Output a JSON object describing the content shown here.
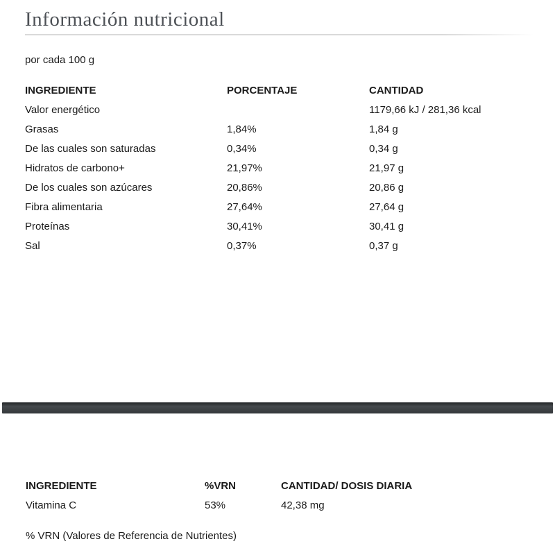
{
  "page": {
    "title": "Información nutricional",
    "serving_note": "por cada 100 g",
    "footnote": "% VRN (Valores de Referencia de Nutrientes)"
  },
  "nutrition_table": {
    "headers": {
      "ingredient": "INGREDIENTE",
      "percentage": "PORCENTAJE",
      "quantity": "CANTIDAD"
    },
    "rows": [
      {
        "ingredient": "Valor energético",
        "percentage": "",
        "quantity": "1179,66 kJ / 281,36 kcal"
      },
      {
        "ingredient": "Grasas",
        "percentage": "1,84%",
        "quantity": "1,84 g"
      },
      {
        "ingredient": "De las cuales son saturadas",
        "percentage": "0,34%",
        "quantity": "0,34 g"
      },
      {
        "ingredient": "Hidratos de carbono+",
        "percentage": "21,97%",
        "quantity": "21,97 g"
      },
      {
        "ingredient": "De los cuales son azúcares",
        "percentage": "20,86%",
        "quantity": "20,86 g"
      },
      {
        "ingredient": "Fibra alimentaria",
        "percentage": "27,64%",
        "quantity": "27,64 g"
      },
      {
        "ingredient": "Proteínas",
        "percentage": "30,41%",
        "quantity": "30,41 g"
      },
      {
        "ingredient": "Sal",
        "percentage": "0,37%",
        "quantity": "0,37 g"
      }
    ]
  },
  "vrn_table": {
    "headers": {
      "ingredient": "INGREDIENTE",
      "vrn": "%VRN",
      "quantity": "CANTIDAD/ DOSIS DIARIA"
    },
    "rows": [
      {
        "ingredient": "Vitamina C",
        "vrn": "53%",
        "quantity": "42,38 mg"
      }
    ]
  },
  "colors": {
    "title_text": "#4d5156",
    "body_text": "#1b1b1b",
    "title_rule": "#d9d9d9",
    "divider_bar": "#3a3e41",
    "background": "#ffffff"
  }
}
